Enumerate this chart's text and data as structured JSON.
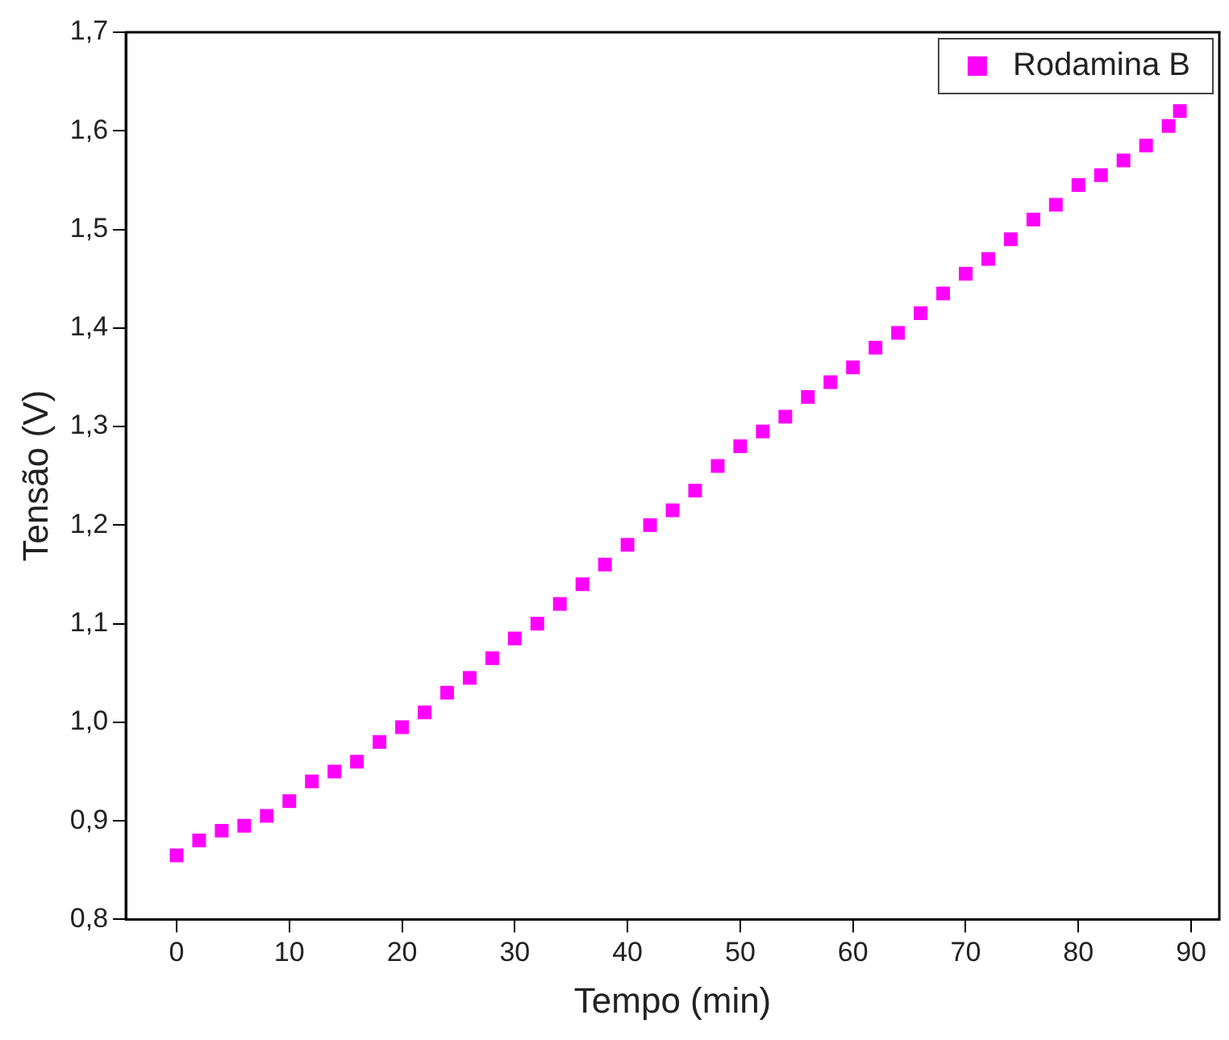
{
  "chart_data": {
    "type": "scatter",
    "xlabel": "Tempo (min)",
    "ylabel": "Tensão (V)",
    "xlim": [
      -4.5,
      92.5
    ],
    "xticks": [
      0,
      10,
      20,
      30,
      40,
      50,
      60,
      70,
      80,
      90
    ],
    "ylim": [
      0.8,
      1.7
    ],
    "yticks": [
      {
        "value": 0.8,
        "label": "0,8"
      },
      {
        "value": 0.9,
        "label": "0,9"
      },
      {
        "value": 1.0,
        "label": "1,0"
      },
      {
        "value": 1.1,
        "label": "1,1"
      },
      {
        "value": 1.2,
        "label": "1,2"
      },
      {
        "value": 1.3,
        "label": "1,3"
      },
      {
        "value": 1.4,
        "label": "1,4"
      },
      {
        "value": 1.5,
        "label": "1,5"
      },
      {
        "value": 1.6,
        "label": "1,6"
      },
      {
        "value": 1.7,
        "label": "1,7"
      }
    ],
    "grid": false,
    "legend": "top right",
    "marker": "square",
    "series": [
      {
        "name": "Rodamina B",
        "color": "#ff00ff",
        "x": [
          0,
          2,
          4,
          6,
          8,
          10,
          12,
          14,
          16,
          18,
          20,
          22,
          24,
          26,
          28,
          30,
          32,
          34,
          36,
          38,
          40,
          42,
          44,
          46,
          48,
          50,
          52,
          54,
          56,
          58,
          60,
          62,
          64,
          66,
          68,
          70,
          72,
          74,
          76,
          78,
          80,
          82,
          84,
          86,
          88,
          89
        ],
        "values": [
          0.865,
          0.88,
          0.89,
          0.895,
          0.905,
          0.92,
          0.94,
          0.95,
          0.96,
          0.98,
          0.995,
          1.01,
          1.03,
          1.045,
          1.065,
          1.085,
          1.1,
          1.12,
          1.14,
          1.16,
          1.18,
          1.2,
          1.215,
          1.235,
          1.26,
          1.28,
          1.295,
          1.31,
          1.33,
          1.345,
          1.36,
          1.38,
          1.395,
          1.415,
          1.435,
          1.455,
          1.47,
          1.49,
          1.51,
          1.525,
          1.545,
          1.555,
          1.57,
          1.585,
          1.605,
          1.62
        ]
      }
    ]
  }
}
